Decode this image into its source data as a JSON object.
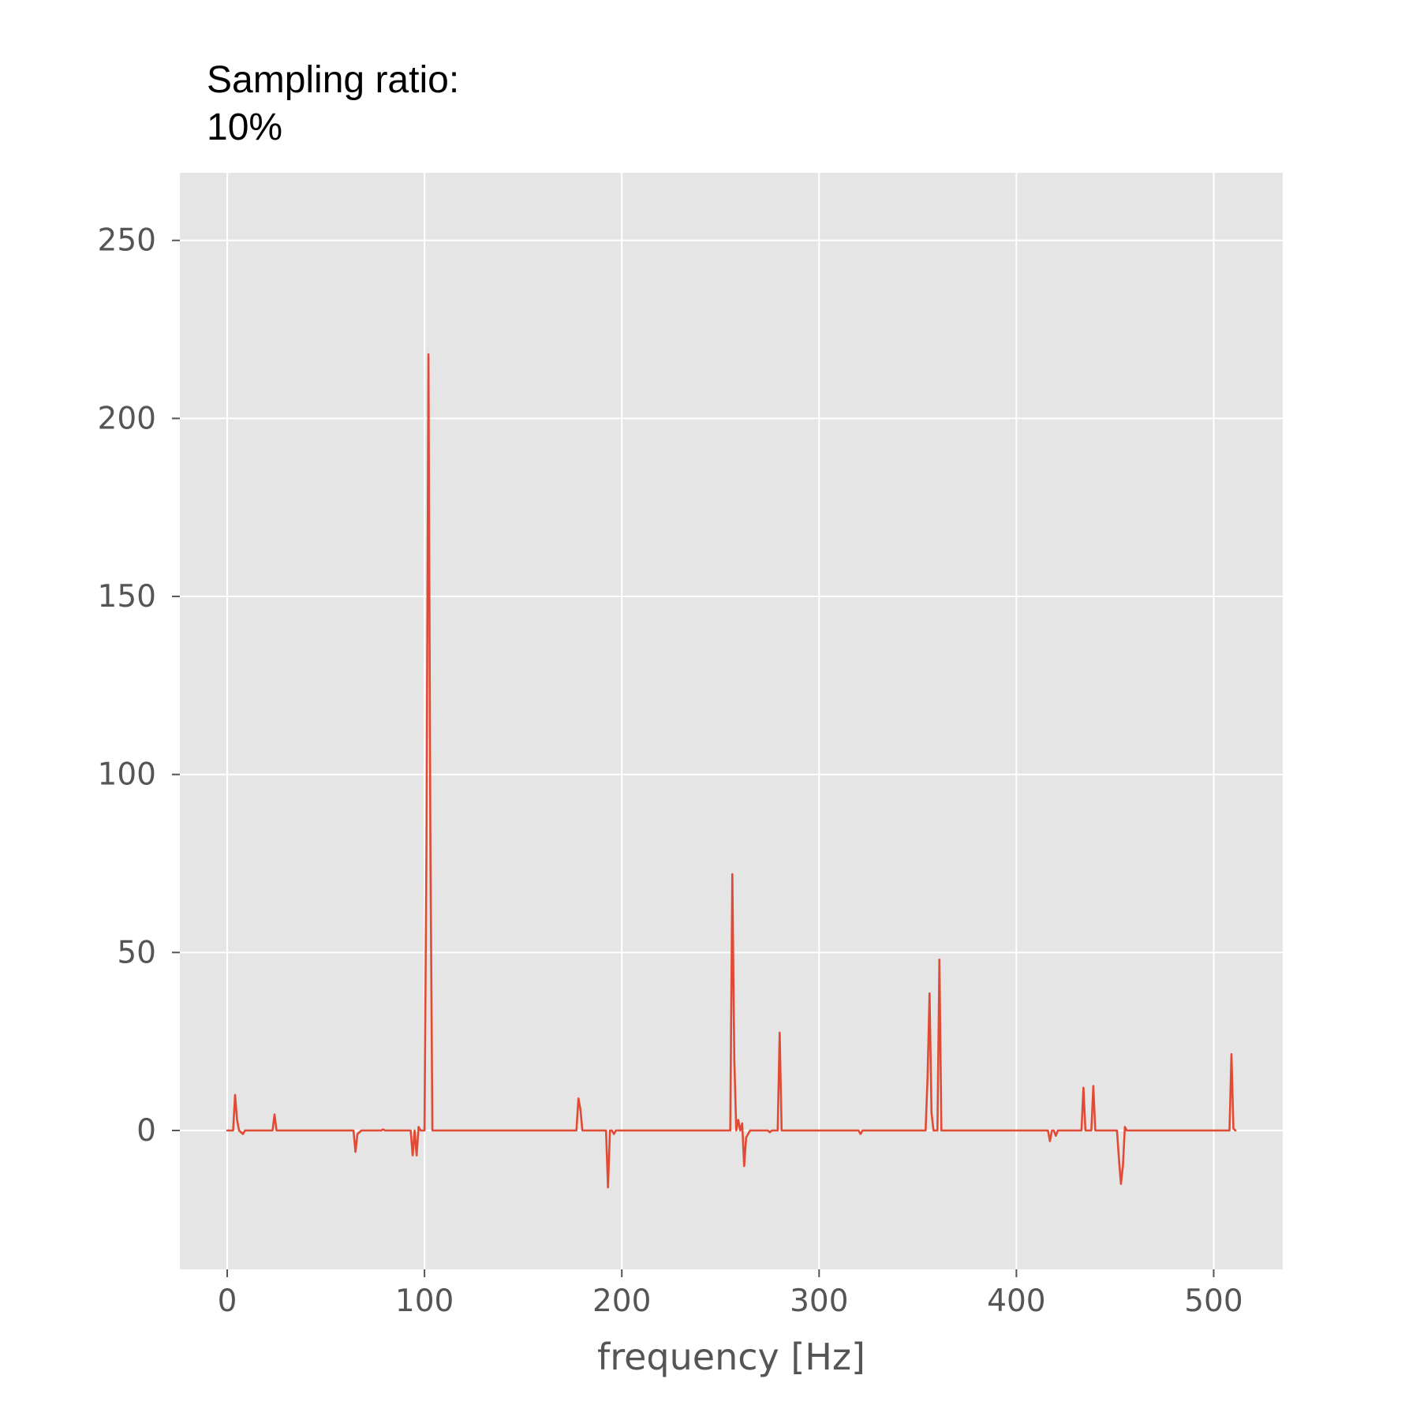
{
  "chart_data": {
    "type": "line",
    "title_lines": [
      "Sampling ratio:",
      "10%"
    ],
    "xlabel": "frequency [Hz]",
    "ylabel": "",
    "xlim": [
      -24,
      535
    ],
    "ylim": [
      -39,
      269
    ],
    "xticks": [
      0,
      100,
      200,
      300,
      400,
      500
    ],
    "yticks": [
      0,
      50,
      100,
      150,
      200,
      250
    ],
    "grid": true,
    "colors": {
      "background": "#e5e5e5",
      "grid": "#ffffff",
      "line": "#e24a33",
      "tick": "#555555"
    },
    "series": [
      {
        "x": [
          0,
          3,
          4,
          5,
          6,
          8,
          9,
          10,
          20,
          23,
          24,
          25,
          26,
          40,
          60,
          64,
          65,
          66,
          68,
          70,
          78,
          79,
          80,
          92,
          93,
          94,
          95,
          96,
          97,
          98,
          100,
          101,
          102,
          103,
          104,
          105,
          106,
          120,
          150,
          176,
          177,
          178,
          179,
          180,
          190,
          192,
          193,
          194,
          195,
          196,
          197,
          198,
          200,
          230,
          254,
          255,
          256,
          257,
          258,
          259,
          260,
          261,
          262,
          263,
          265,
          270,
          274,
          275,
          276,
          278,
          279,
          280,
          281,
          282,
          300,
          318,
          320,
          321,
          322,
          324,
          340,
          353,
          354,
          355,
          356,
          357,
          358,
          359,
          360,
          361,
          362,
          363,
          380,
          400,
          415,
          416,
          417,
          418,
          419,
          420,
          421,
          422,
          430,
          432,
          433,
          434,
          435,
          437,
          438,
          439,
          440,
          441,
          450,
          451,
          452,
          453,
          454,
          455,
          456,
          470,
          490,
          507,
          508,
          509,
          510,
          511
        ],
        "y": [
          0,
          0,
          10,
          3,
          0,
          -1,
          0,
          0,
          0,
          0,
          4.5,
          0,
          0,
          0,
          0,
          0,
          -6,
          -1,
          0,
          0,
          0,
          0.3,
          0,
          0,
          0,
          -7,
          0,
          -7,
          1,
          0,
          0,
          80,
          218,
          80,
          0,
          0,
          0,
          0,
          0,
          0,
          0,
          9,
          6,
          0,
          0,
          0,
          -16,
          0,
          0,
          -1,
          0,
          0,
          0,
          0,
          0,
          0,
          72,
          20,
          0,
          3,
          0,
          2,
          -10,
          -2,
          0,
          0,
          0,
          -0.5,
          0,
          0,
          0,
          27.5,
          0,
          0,
          0,
          0,
          0,
          -1,
          0,
          0,
          0,
          0,
          0,
          15,
          38.5,
          5,
          0,
          0,
          0,
          48,
          0,
          0,
          0,
          0,
          0,
          0,
          -3,
          0,
          0,
          -1.5,
          0,
          0,
          0,
          0,
          0,
          12,
          0,
          0,
          0,
          12.5,
          0,
          0,
          0,
          0,
          -8,
          -15,
          -10,
          1,
          0,
          0,
          0,
          0,
          0,
          21.5,
          0.5,
          0
        ]
      }
    ]
  }
}
